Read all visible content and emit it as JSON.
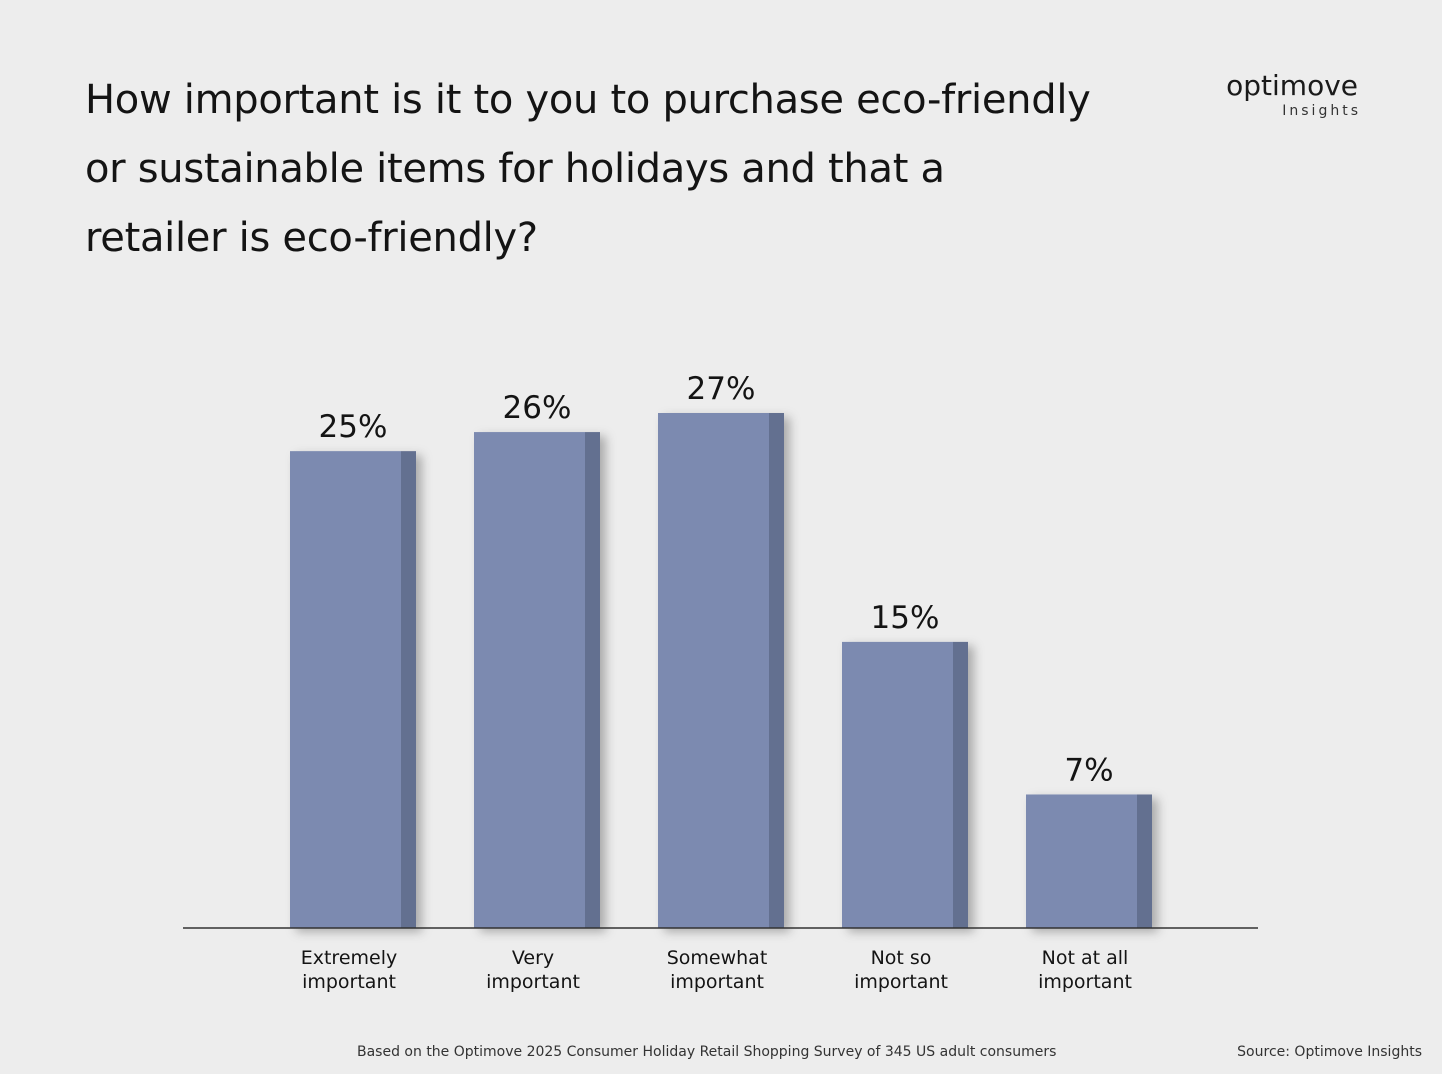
{
  "header": {
    "title": "How important is it to you to purchase eco-friendly or sustainable items for holidays and that a retailer is eco-friendly?",
    "logo_name": "optimove",
    "logo_sub": "Insights"
  },
  "chart_data": {
    "type": "bar",
    "categories": [
      [
        "Extremely",
        "important"
      ],
      [
        "Very",
        "important"
      ],
      [
        "Somewhat",
        "important"
      ],
      [
        "Not so",
        "important"
      ],
      [
        "Not at all",
        "important"
      ]
    ],
    "values": [
      25,
      26,
      27,
      15,
      7
    ],
    "value_labels": [
      "25%",
      "26%",
      "27%",
      "15%",
      "7%"
    ],
    "unit": "%",
    "ylim": [
      0,
      27
    ],
    "grid": false,
    "legend": "none",
    "colors": {
      "bar": "#7b8ab0",
      "bar_side": "#636f90",
      "axis": "#333333"
    }
  },
  "footer": {
    "note": "Based on the Optimove 2025 Consumer Holiday Retail Shopping Survey of 345 US adult consumers",
    "source": "Source: Optimove Insights"
  }
}
